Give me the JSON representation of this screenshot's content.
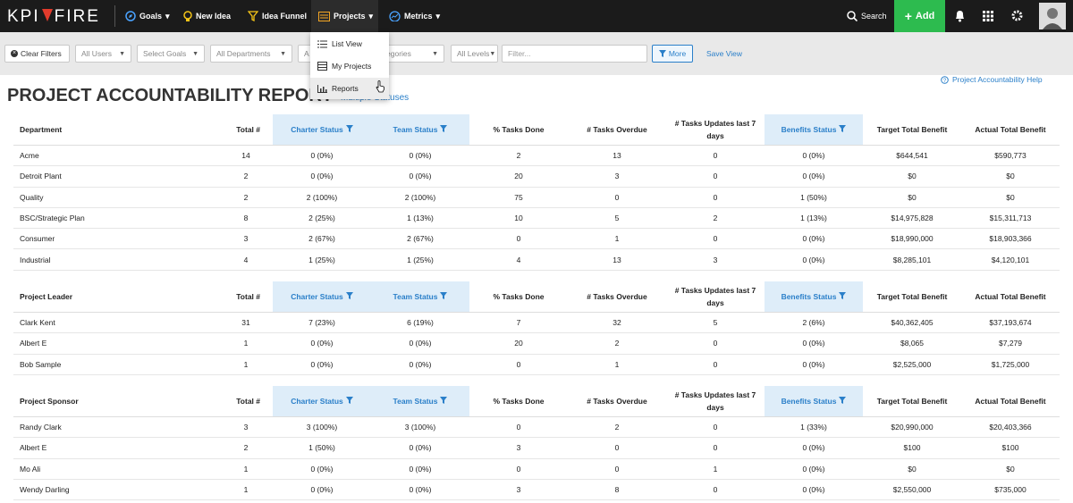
{
  "nav": {
    "logo_left": "KPI",
    "logo_right": "FIRE",
    "items": [
      "Goals",
      "New Idea",
      "Idea Funnel",
      "Projects",
      "Metrics"
    ],
    "search": "Search",
    "add": "Add"
  },
  "dropdown": {
    "items": [
      "List View",
      "My Projects",
      "Reports"
    ]
  },
  "filters": {
    "clear": "Clear Filters",
    "selects": [
      "All Users",
      "Select Goals",
      "All Departments",
      "A",
      "All Categories",
      "All Levels"
    ],
    "placeholder": "Filter...",
    "more": "More",
    "save": "Save View"
  },
  "header": {
    "title": "PROJECT ACCOUNTABILITY REPORT",
    "subtitle": "Multiple Statuses",
    "help": "Project Accountability Help"
  },
  "tables": [
    {
      "header": [
        "Department",
        "Total #",
        "Charter Status",
        "Team Status",
        "% Tasks Done",
        "# Tasks Overdue",
        "# Tasks Updates last 7 days",
        "Benefits Status",
        "Target Total Benefit",
        "Actual Total Benefit"
      ],
      "rows": [
        [
          "Acme",
          14,
          "0 (0%)",
          "0 (0%)",
          2,
          13,
          0,
          "0 (0%)",
          "$644,541",
          "$590,773"
        ],
        [
          "Detroit Plant",
          2,
          "0 (0%)",
          "0 (0%)",
          20,
          3,
          0,
          "0 (0%)",
          "$0",
          "$0"
        ],
        [
          "Quality",
          2,
          "2 (100%)",
          "2 (100%)",
          75,
          0,
          0,
          "1 (50%)",
          "$0",
          "$0"
        ],
        [
          "BSC/Strategic Plan",
          8,
          "2 (25%)",
          "1 (13%)",
          10,
          5,
          2,
          "1 (13%)",
          "$14,975,828",
          "$15,311,713"
        ],
        [
          "Consumer",
          3,
          "2 (67%)",
          "2 (67%)",
          0,
          1,
          0,
          "0 (0%)",
          "$18,990,000",
          "$18,903,366"
        ],
        [
          "Industrial",
          4,
          "1 (25%)",
          "1 (25%)",
          4,
          13,
          3,
          "0 (0%)",
          "$8,285,101",
          "$4,120,101"
        ]
      ]
    },
    {
      "header": [
        "Project Leader",
        "Total #",
        "Charter Status",
        "Team Status",
        "% Tasks Done",
        "# Tasks Overdue",
        "# Tasks Updates last 7 days",
        "Benefits Status",
        "Target Total Benefit",
        "Actual Total Benefit"
      ],
      "rows": [
        [
          "Clark Kent",
          31,
          "7 (23%)",
          "6 (19%)",
          7,
          32,
          5,
          "2 (6%)",
          "$40,362,405",
          "$37,193,674"
        ],
        [
          "Albert E",
          1,
          "0 (0%)",
          "0 (0%)",
          20,
          2,
          0,
          "0 (0%)",
          "$8,065",
          "$7,279"
        ],
        [
          "Bob Sample",
          1,
          "0 (0%)",
          "0 (0%)",
          0,
          1,
          0,
          "0 (0%)",
          "$2,525,000",
          "$1,725,000"
        ]
      ]
    },
    {
      "header": [
        "Project Sponsor",
        "Total #",
        "Charter Status",
        "Team Status",
        "% Tasks Done",
        "# Tasks Overdue",
        "# Tasks Updates last 7 days",
        "Benefits Status",
        "Target Total Benefit",
        "Actual Total Benefit"
      ],
      "rows": [
        [
          "Randy Clark",
          3,
          "3 (100%)",
          "3 (100%)",
          0,
          2,
          0,
          "1 (33%)",
          "$20,990,000",
          "$20,403,366"
        ],
        [
          "Albert E",
          2,
          "1 (50%)",
          "0 (0%)",
          3,
          0,
          0,
          "0 (0%)",
          "$100",
          "$100"
        ],
        [
          "Mo Ali",
          1,
          "0 (0%)",
          "0 (0%)",
          0,
          0,
          1,
          "0 (0%)",
          "$0",
          "$0"
        ],
        [
          "Wendy Darling",
          1,
          "0 (0%)",
          "0 (0%)",
          3,
          8,
          0,
          "0 (0%)",
          "$2,550,000",
          "$735,000"
        ]
      ]
    }
  ]
}
